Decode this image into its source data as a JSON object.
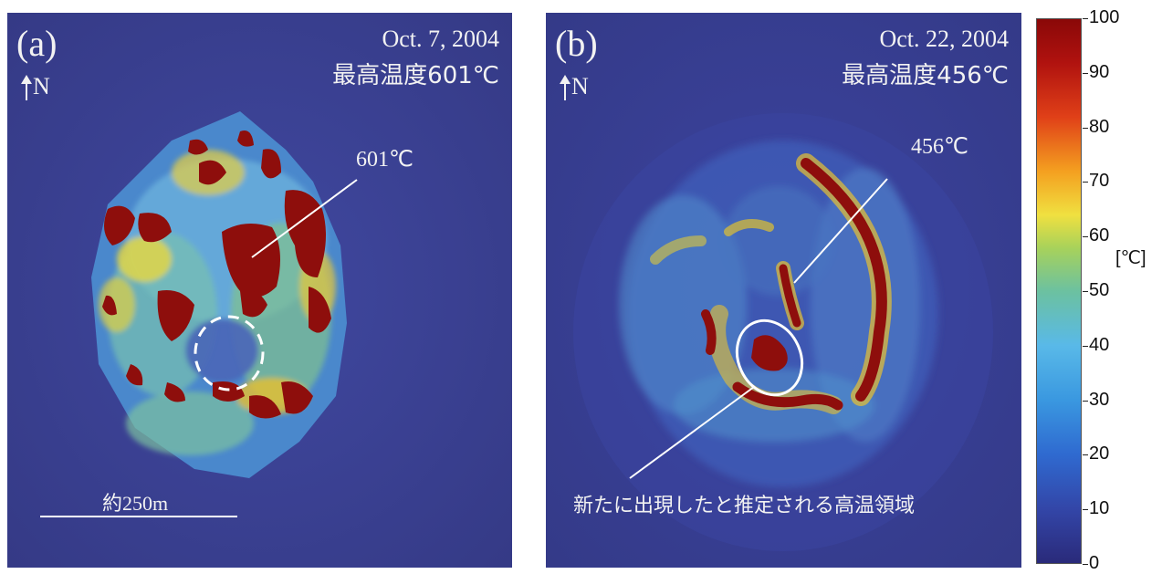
{
  "panel_a": {
    "letter": "(a)",
    "north": "N",
    "date": "Oct. 7, 2004",
    "max_temp": "最高温度601℃",
    "callout": "601℃",
    "scale": "約250m"
  },
  "panel_b": {
    "letter": "(b)",
    "north": "N",
    "date": "Oct. 22, 2004",
    "max_temp": "最高温度456℃",
    "callout": "456℃",
    "annotation": "新たに出現したと推定される高温領域"
  },
  "colorbar": {
    "unit": "[℃]",
    "ticks": [
      "100",
      "90",
      "80",
      "70",
      "60",
      "50",
      "40",
      "30",
      "20",
      "10",
      "0"
    ]
  }
}
